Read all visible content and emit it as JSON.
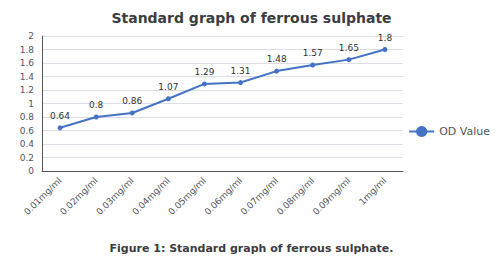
{
  "chart_data": {
    "type": "line",
    "title": "Standard graph of ferrous sulphate",
    "caption": "Figure 1: Standard graph of ferrous sulphate.",
    "categories": [
      "0.01mg/ml",
      "0.02mg/ml",
      "0.03mg/ml",
      "0.04mg/ml",
      "0.05mg/ml",
      "0.06mg/ml",
      "0.07mg/ml",
      "0.08mg/ml",
      "0.09mg/ml",
      "1mg/ml"
    ],
    "series": [
      {
        "name": "OD Value",
        "color": "#4472C4",
        "marker": "circle",
        "values": [
          0.64,
          0.8,
          0.86,
          1.07,
          1.29,
          1.31,
          1.48,
          1.57,
          1.65,
          1.8
        ]
      }
    ],
    "ylim": [
      0,
      2.0
    ],
    "yticks": [
      0,
      0.2,
      0.4,
      0.6,
      0.8,
      1,
      1.2,
      1.4,
      1.6,
      1.8,
      2
    ],
    "grid": true,
    "legend": "right",
    "data_labels": true
  }
}
